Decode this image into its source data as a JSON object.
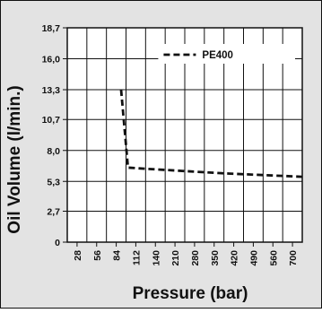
{
  "chart_data": {
    "type": "line",
    "title": "",
    "xlabel": "Pressure (bar)",
    "ylabel": "Oil Volume (l/min.)",
    "x_categories": [
      "28",
      "56",
      "84",
      "112",
      "140",
      "210",
      "280",
      "350",
      "420",
      "490",
      "560",
      "700"
    ],
    "y_ticks": [
      "0",
      "2,7",
      "5,3",
      "8,0",
      "10,7",
      "13,3",
      "16,0",
      "18,7"
    ],
    "y_tick_values": [
      0,
      2.7,
      5.3,
      8.0,
      10.7,
      13.3,
      16.0,
      18.7
    ],
    "ylim": [
      0,
      18.7
    ],
    "grid": true,
    "legend_position": "top-right",
    "series": [
      {
        "name": "PE400",
        "style": "dashed",
        "color": "#111111",
        "points": [
          {
            "x_index": 2.75,
            "y": 13.3
          },
          {
            "x_index": 3.1,
            "y": 6.5
          },
          {
            "x_index": 4.0,
            "y": 6.4
          },
          {
            "x_index": 8.0,
            "y": 6.0
          },
          {
            "x_index": 12.0,
            "y": 5.7
          }
        ]
      }
    ]
  },
  "colors": {
    "frame_bg": "#e3e3e3",
    "plot_bg": "#ffffff",
    "line": "#111111"
  }
}
